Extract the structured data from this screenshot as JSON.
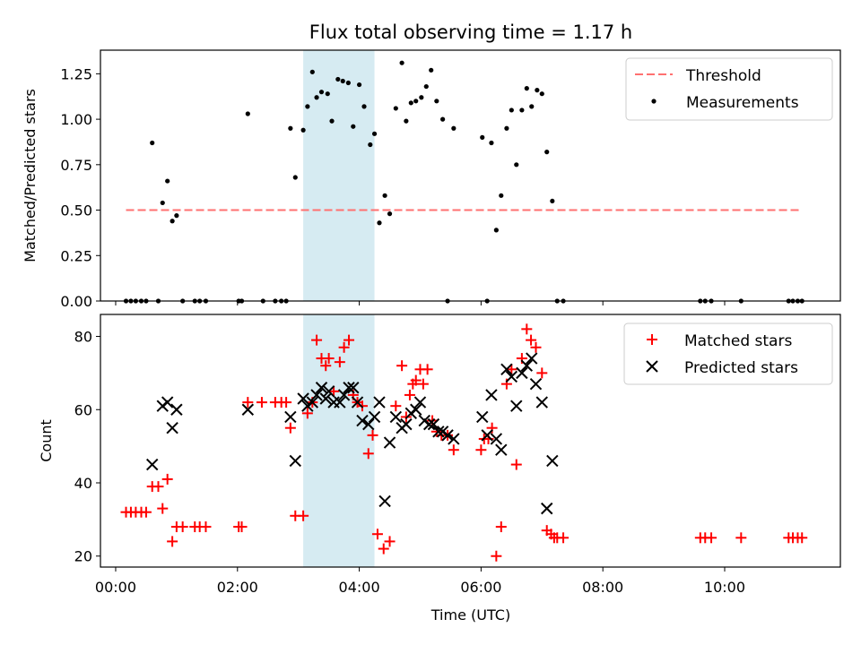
{
  "colors": {
    "threshold": "#ff7070",
    "measurement": "#000000",
    "matched": "#ff0000",
    "predicted": "#000000",
    "shade": "#add8e6"
  },
  "chart_data": [
    {
      "type": "scatter",
      "title": "Flux total observing time = 1.17 h",
      "xlabel": "",
      "ylabel": "Matched/Predicted stars",
      "xlim": [
        -0.25,
        11.9
      ],
      "ylim": [
        0,
        1.38
      ],
      "yticks": [
        0,
        0.25,
        0.5,
        0.75,
        1.0,
        1.25
      ],
      "ytick_labels": [
        "0.00",
        "0.25",
        "0.50",
        "0.75",
        "1.00",
        "1.25"
      ],
      "shaded_region": [
        3.08,
        4.25
      ],
      "legend": {
        "placement": "top-right",
        "entries": [
          "Threshold",
          "Measurements"
        ]
      },
      "threshold": {
        "name": "Threshold",
        "value": 0.5,
        "x_range": [
          0.17,
          11.25
        ]
      },
      "series": [
        {
          "name": "Measurements",
          "points": [
            [
              0.17,
              0
            ],
            [
              0.25,
              0
            ],
            [
              0.33,
              0
            ],
            [
              0.42,
              0
            ],
            [
              0.5,
              0
            ],
            [
              0.6,
              0.87
            ],
            [
              0.7,
              0
            ],
            [
              0.77,
              0.54
            ],
            [
              0.85,
              0.66
            ],
            [
              0.93,
              0.44
            ],
            [
              1.0,
              0.47
            ],
            [
              1.1,
              0
            ],
            [
              1.3,
              0
            ],
            [
              1.38,
              0
            ],
            [
              1.48,
              0
            ],
            [
              2.02,
              0
            ],
            [
              2.07,
              0
            ],
            [
              2.17,
              1.03
            ],
            [
              2.42,
              0
            ],
            [
              2.62,
              0
            ],
            [
              2.72,
              0
            ],
            [
              2.8,
              0
            ],
            [
              2.87,
              0.95
            ],
            [
              2.95,
              0.68
            ],
            [
              3.08,
              0.94
            ],
            [
              3.15,
              1.07
            ],
            [
              3.23,
              1.26
            ],
            [
              3.3,
              1.12
            ],
            [
              3.38,
              1.15
            ],
            [
              3.48,
              1.14
            ],
            [
              3.55,
              0.99
            ],
            [
              3.65,
              1.22
            ],
            [
              3.73,
              1.21
            ],
            [
              3.82,
              1.2
            ],
            [
              3.9,
              0.96
            ],
            [
              4.0,
              1.19
            ],
            [
              4.08,
              1.07
            ],
            [
              4.18,
              0.86
            ],
            [
              4.25,
              0.92
            ],
            [
              4.33,
              0.43
            ],
            [
              4.42,
              0.58
            ],
            [
              4.5,
              0.48
            ],
            [
              4.6,
              1.06
            ],
            [
              4.7,
              1.31
            ],
            [
              4.77,
              0.99
            ],
            [
              4.85,
              1.09
            ],
            [
              4.93,
              1.1
            ],
            [
              5.02,
              1.12
            ],
            [
              5.1,
              1.18
            ],
            [
              5.18,
              1.27
            ],
            [
              5.27,
              1.1
            ],
            [
              5.37,
              1.0
            ],
            [
              5.45,
              0
            ],
            [
              5.55,
              0.95
            ],
            [
              6.02,
              0.9
            ],
            [
              6.1,
              0
            ],
            [
              6.17,
              0.87
            ],
            [
              6.25,
              0.39
            ],
            [
              6.33,
              0.58
            ],
            [
              6.42,
              0.95
            ],
            [
              6.5,
              1.05
            ],
            [
              6.58,
              0.75
            ],
            [
              6.67,
              1.05
            ],
            [
              6.75,
              1.17
            ],
            [
              6.83,
              1.07
            ],
            [
              6.92,
              1.16
            ],
            [
              7.0,
              1.14
            ],
            [
              7.08,
              0.82
            ],
            [
              7.17,
              0.55
            ],
            [
              7.25,
              0
            ],
            [
              7.35,
              0
            ],
            [
              9.6,
              0
            ],
            [
              9.68,
              0
            ],
            [
              9.78,
              0
            ],
            [
              10.27,
              0
            ],
            [
              11.05,
              0
            ],
            [
              11.12,
              0
            ],
            [
              11.2,
              0
            ],
            [
              11.27,
              0
            ]
          ]
        }
      ]
    },
    {
      "type": "scatter",
      "title": "",
      "xlabel": "Time (UTC)",
      "ylabel": "Count",
      "xlim": [
        -0.25,
        11.9
      ],
      "ylim": [
        17,
        86
      ],
      "yticks": [
        20,
        40,
        60,
        80
      ],
      "ytick_labels": [
        "20",
        "40",
        "60",
        "80"
      ],
      "xticks": [
        0,
        2,
        4,
        6,
        8,
        10
      ],
      "xtick_labels": [
        "00:00",
        "02:00",
        "04:00",
        "06:00",
        "08:00",
        "10:00"
      ],
      "shaded_region": [
        3.08,
        4.25
      ],
      "legend": {
        "placement": "top-right",
        "entries": [
          "Matched stars",
          "Predicted stars"
        ]
      },
      "series": [
        {
          "name": "Matched stars",
          "marker": "+",
          "points": [
            [
              0.17,
              32
            ],
            [
              0.25,
              32
            ],
            [
              0.33,
              32
            ],
            [
              0.42,
              32
            ],
            [
              0.5,
              32
            ],
            [
              0.6,
              39
            ],
            [
              0.7,
              39
            ],
            [
              0.77,
              33
            ],
            [
              0.85,
              41
            ],
            [
              0.93,
              24
            ],
            [
              1.0,
              28
            ],
            [
              1.1,
              28
            ],
            [
              1.3,
              28
            ],
            [
              1.38,
              28
            ],
            [
              1.48,
              28
            ],
            [
              2.02,
              28
            ],
            [
              2.07,
              28
            ],
            [
              2.17,
              62
            ],
            [
              2.4,
              62
            ],
            [
              2.62,
              62
            ],
            [
              2.72,
              62
            ],
            [
              2.8,
              62
            ],
            [
              2.87,
              55
            ],
            [
              2.95,
              31
            ],
            [
              3.08,
              31
            ],
            [
              3.15,
              59
            ],
            [
              3.23,
              62
            ],
            [
              3.3,
              79
            ],
            [
              3.38,
              74
            ],
            [
              3.45,
              72
            ],
            [
              3.5,
              74
            ],
            [
              3.58,
              65
            ],
            [
              3.68,
              73
            ],
            [
              3.75,
              77
            ],
            [
              3.83,
              79
            ],
            [
              3.9,
              64
            ],
            [
              3.97,
              62
            ],
            [
              4.05,
              61
            ],
            [
              4.15,
              48
            ],
            [
              4.22,
              53
            ],
            [
              4.3,
              26
            ],
            [
              4.4,
              22
            ],
            [
              4.5,
              24
            ],
            [
              4.6,
              61
            ],
            [
              4.7,
              72
            ],
            [
              4.77,
              58
            ],
            [
              4.83,
              64
            ],
            [
              4.88,
              67
            ],
            [
              4.93,
              68
            ],
            [
              5.0,
              71
            ],
            [
              5.05,
              67
            ],
            [
              5.12,
              71
            ],
            [
              5.2,
              57
            ],
            [
              5.27,
              54
            ],
            [
              5.35,
              53
            ],
            [
              5.45,
              53
            ],
            [
              5.55,
              49
            ],
            [
              6.0,
              49
            ],
            [
              6.05,
              52
            ],
            [
              6.12,
              52
            ],
            [
              6.18,
              55
            ],
            [
              6.25,
              20
            ],
            [
              6.33,
              28
            ],
            [
              6.42,
              67
            ],
            [
              6.5,
              71
            ],
            [
              6.58,
              45
            ],
            [
              6.67,
              74
            ],
            [
              6.75,
              82
            ],
            [
              6.82,
              79
            ],
            [
              6.9,
              77
            ],
            [
              7.0,
              70
            ],
            [
              7.08,
              27
            ],
            [
              7.15,
              26
            ],
            [
              7.2,
              25
            ],
            [
              7.25,
              25
            ],
            [
              7.35,
              25
            ],
            [
              9.6,
              25
            ],
            [
              9.68,
              25
            ],
            [
              9.78,
              25
            ],
            [
              10.27,
              25
            ],
            [
              11.05,
              25
            ],
            [
              11.12,
              25
            ],
            [
              11.2,
              25
            ],
            [
              11.27,
              25
            ]
          ]
        },
        {
          "name": "Predicted stars",
          "marker": "x",
          "points": [
            [
              0.6,
              45
            ],
            [
              0.77,
              61
            ],
            [
              0.85,
              62
            ],
            [
              0.93,
              55
            ],
            [
              1.0,
              60
            ],
            [
              2.17,
              60
            ],
            [
              2.87,
              58
            ],
            [
              2.95,
              46
            ],
            [
              3.08,
              63
            ],
            [
              3.15,
              61
            ],
            [
              3.23,
              62
            ],
            [
              3.3,
              64
            ],
            [
              3.38,
              66
            ],
            [
              3.45,
              63
            ],
            [
              3.5,
              65
            ],
            [
              3.58,
              62
            ],
            [
              3.68,
              62
            ],
            [
              3.75,
              64
            ],
            [
              3.83,
              66
            ],
            [
              3.9,
              66
            ],
            [
              3.97,
              62
            ],
            [
              4.05,
              57
            ],
            [
              4.15,
              56
            ],
            [
              4.25,
              58
            ],
            [
              4.33,
              62
            ],
            [
              4.42,
              35
            ],
            [
              4.5,
              51
            ],
            [
              4.6,
              58
            ],
            [
              4.7,
              55
            ],
            [
              4.77,
              56
            ],
            [
              4.85,
              59
            ],
            [
              4.93,
              60
            ],
            [
              5.0,
              62
            ],
            [
              5.07,
              57
            ],
            [
              5.15,
              56
            ],
            [
              5.22,
              56
            ],
            [
              5.3,
              54
            ],
            [
              5.37,
              54
            ],
            [
              5.45,
              53
            ],
            [
              5.55,
              52
            ],
            [
              6.02,
              58
            ],
            [
              6.1,
              53
            ],
            [
              6.17,
              64
            ],
            [
              6.25,
              52
            ],
            [
              6.33,
              49
            ],
            [
              6.42,
              71
            ],
            [
              6.5,
              69
            ],
            [
              6.58,
              61
            ],
            [
              6.67,
              70
            ],
            [
              6.75,
              72
            ],
            [
              6.83,
              74
            ],
            [
              6.9,
              67
            ],
            [
              7.0,
              62
            ],
            [
              7.08,
              33
            ],
            [
              7.17,
              46
            ]
          ]
        }
      ]
    }
  ]
}
